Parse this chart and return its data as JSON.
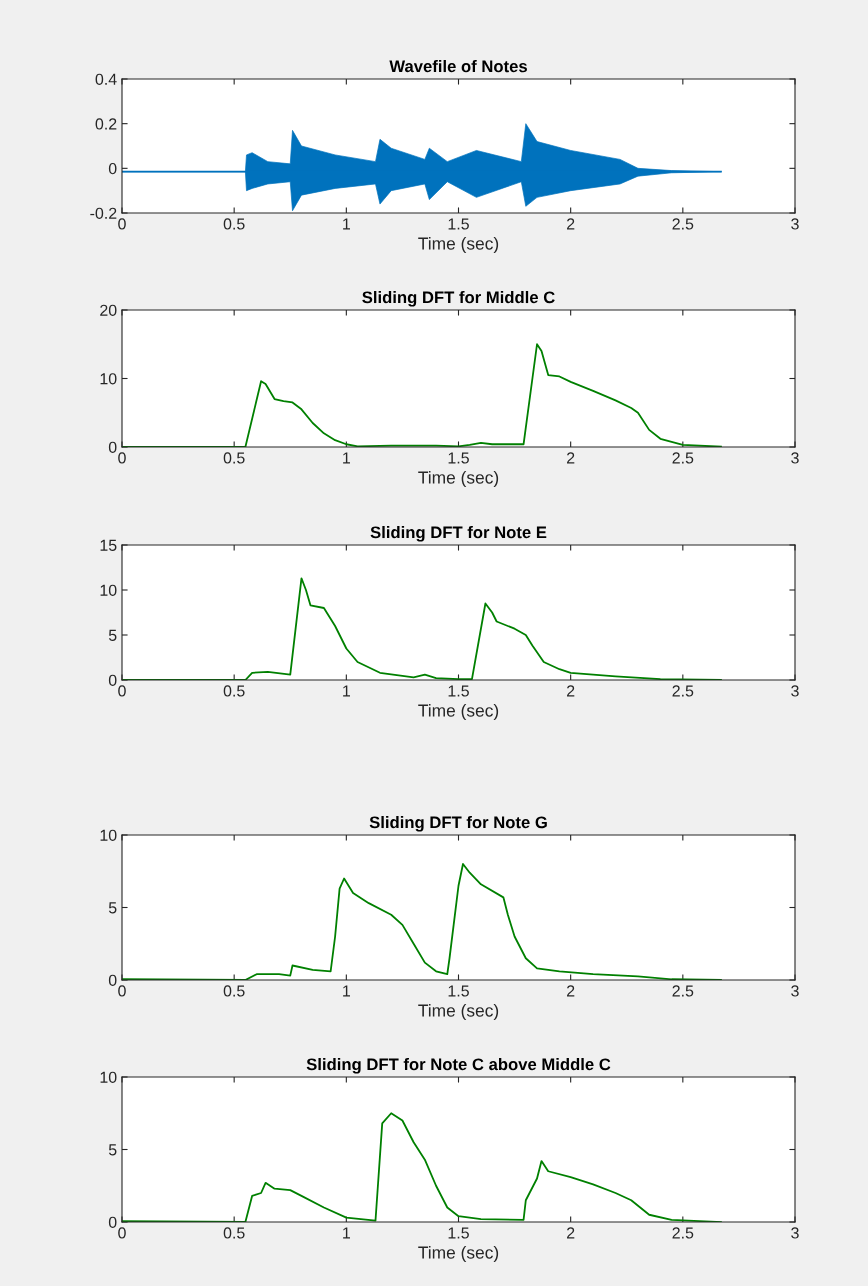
{
  "chart_data": [
    {
      "type": "line",
      "title": "Wavefile of Notes",
      "xlabel": "Time (sec)",
      "xlim": [
        0,
        3
      ],
      "ylim": [
        -0.2,
        0.4
      ],
      "xticks": [
        0,
        0.5,
        1,
        1.5,
        2,
        2.5,
        3
      ],
      "yticks": [
        -0.2,
        0,
        0.2,
        0.4
      ],
      "x": [
        0,
        0.55,
        0.555,
        0.58,
        0.65,
        0.75,
        0.76,
        0.8,
        0.95,
        1.13,
        1.15,
        1.2,
        1.35,
        1.37,
        1.45,
        1.58,
        1.78,
        1.8,
        1.85,
        2.0,
        2.22,
        2.3,
        2.45,
        2.67
      ],
      "series": [
        {
          "color": "#0072bd",
          "values": [
            -0.015,
            -0.015,
            -0.015,
            -0.015,
            -0.015,
            -0.015,
            -0.015,
            -0.015,
            -0.015,
            -0.015,
            -0.015,
            -0.015,
            -0.015,
            -0.015,
            -0.015,
            -0.015,
            -0.015,
            -0.015,
            -0.015,
            -0.015,
            -0.015,
            -0.015,
            -0.015,
            -0.015
          ],
          "lower": [
            -0.015,
            -0.015,
            -0.1,
            -0.09,
            -0.07,
            -0.06,
            -0.19,
            -0.12,
            -0.09,
            -0.07,
            -0.16,
            -0.1,
            -0.07,
            -0.14,
            -0.06,
            -0.13,
            -0.06,
            -0.17,
            -0.13,
            -0.1,
            -0.07,
            -0.035,
            -0.02,
            -0.015
          ],
          "upper": [
            -0.015,
            -0.015,
            0.06,
            0.07,
            0.03,
            0.02,
            0.17,
            0.1,
            0.06,
            0.03,
            0.13,
            0.09,
            0.04,
            0.09,
            0.03,
            0.08,
            0.03,
            0.2,
            0.12,
            0.08,
            0.04,
            0.0,
            -0.01,
            -0.015
          ]
        }
      ]
    },
    {
      "type": "line",
      "title": "Sliding DFT for Middle C",
      "xlabel": "Time (sec)",
      "xlim": [
        0,
        3
      ],
      "ylim": [
        0,
        20
      ],
      "xticks": [
        0,
        0.5,
        1,
        1.5,
        2,
        2.5,
        3
      ],
      "yticks": [
        0,
        10,
        20
      ],
      "x": [
        0,
        0.55,
        0.62,
        0.64,
        0.68,
        0.72,
        0.76,
        0.8,
        0.85,
        0.9,
        0.95,
        1.0,
        1.05,
        1.2,
        1.4,
        1.5,
        1.55,
        1.6,
        1.65,
        1.79,
        1.85,
        1.87,
        1.9,
        1.95,
        2.0,
        2.1,
        2.2,
        2.27,
        2.3,
        2.35,
        2.4,
        2.5,
        2.67
      ],
      "series": [
        {
          "color": "#008000",
          "values": [
            0,
            0,
            9.6,
            9.2,
            7,
            6.7,
            6.5,
            5.5,
            3.5,
            2,
            1,
            0.4,
            0.1,
            0.2,
            0.2,
            0.1,
            0.3,
            0.6,
            0.4,
            0.4,
            15,
            14,
            10.5,
            10.3,
            9.5,
            8.2,
            6.8,
            5.7,
            5,
            2.5,
            1.2,
            0.3,
            0.05
          ]
        }
      ]
    },
    {
      "type": "line",
      "title": "Sliding DFT for Note E",
      "xlabel": "Time (sec)",
      "xlim": [
        0,
        3
      ],
      "ylim": [
        0,
        15
      ],
      "xticks": [
        0,
        0.5,
        1,
        1.5,
        2,
        2.5,
        3
      ],
      "yticks": [
        0,
        5,
        10,
        15
      ],
      "x": [
        0,
        0.55,
        0.58,
        0.65,
        0.75,
        0.8,
        0.82,
        0.84,
        0.9,
        0.95,
        1.0,
        1.05,
        1.15,
        1.3,
        1.35,
        1.4,
        1.5,
        1.56,
        1.62,
        1.65,
        1.67,
        1.75,
        1.8,
        1.83,
        1.88,
        1.95,
        2.0,
        2.2,
        2.4,
        2.67
      ],
      "series": [
        {
          "color": "#008000",
          "values": [
            0,
            0,
            0.8,
            0.9,
            0.6,
            11.3,
            10,
            8.3,
            8,
            6,
            3.5,
            2,
            0.8,
            0.3,
            0.6,
            0.2,
            0.1,
            0.1,
            8.5,
            7.5,
            6.5,
            5.7,
            5,
            3.8,
            2,
            1.2,
            0.8,
            0.4,
            0.1,
            0
          ]
        }
      ]
    },
    {
      "type": "line",
      "title": "Sliding DFT for Note G",
      "xlabel": "Time (sec)",
      "xlim": [
        0,
        3
      ],
      "ylim": [
        0,
        10
      ],
      "xticks": [
        0,
        0.5,
        1,
        1.5,
        2,
        2.5,
        3
      ],
      "yticks": [
        0,
        5,
        10
      ],
      "x": [
        0,
        0.55,
        0.6,
        0.7,
        0.75,
        0.76,
        0.85,
        0.93,
        0.95,
        0.97,
        0.99,
        1.03,
        1.1,
        1.2,
        1.25,
        1.3,
        1.35,
        1.4,
        1.45,
        1.46,
        1.5,
        1.52,
        1.55,
        1.6,
        1.7,
        1.72,
        1.75,
        1.8,
        1.85,
        1.95,
        2.1,
        2.3,
        2.45,
        2.67
      ],
      "series": [
        {
          "color": "#008000",
          "values": [
            0.05,
            0,
            0.4,
            0.4,
            0.3,
            1.0,
            0.7,
            0.6,
            3,
            6.3,
            7,
            6,
            5.3,
            4.5,
            3.8,
            2.5,
            1.2,
            0.6,
            0.4,
            1.5,
            6.5,
            8,
            7.4,
            6.6,
            5.7,
            4.5,
            3,
            1.5,
            0.8,
            0.6,
            0.4,
            0.25,
            0.05,
            0
          ]
        }
      ]
    },
    {
      "type": "line",
      "title": "Sliding DFT for Note C above Middle C",
      "xlabel": "Time (sec)",
      "xlim": [
        0,
        3
      ],
      "ylim": [
        0,
        10
      ],
      "xticks": [
        0,
        0.5,
        1,
        1.5,
        2,
        2.5,
        3
      ],
      "yticks": [
        0,
        5,
        10
      ],
      "x": [
        0,
        0.55,
        0.58,
        0.62,
        0.64,
        0.68,
        0.75,
        0.8,
        0.9,
        1.0,
        1.13,
        1.16,
        1.2,
        1.25,
        1.3,
        1.35,
        1.4,
        1.45,
        1.5,
        1.6,
        1.79,
        1.8,
        1.85,
        1.87,
        1.9,
        2.0,
        2.1,
        2.2,
        2.27,
        2.35,
        2.45,
        2.67
      ],
      "series": [
        {
          "color": "#008000",
          "values": [
            0.05,
            0,
            1.8,
            2,
            2.7,
            2.3,
            2.2,
            1.8,
            1,
            0.3,
            0.1,
            6.8,
            7.5,
            7,
            5.5,
            4.3,
            2.5,
            1,
            0.4,
            0.2,
            0.15,
            1.5,
            3,
            4.2,
            3.5,
            3.1,
            2.6,
            2,
            1.5,
            0.5,
            0.15,
            0
          ]
        }
      ]
    }
  ]
}
